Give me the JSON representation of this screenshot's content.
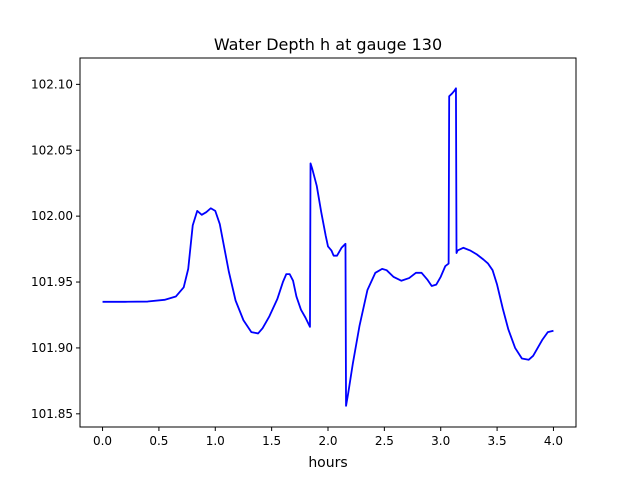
{
  "chart_data": {
    "type": "line",
    "title": "Water Depth h at gauge 130",
    "xlabel": "hours",
    "ylabel": "",
    "xlim": [
      -0.2,
      4.2
    ],
    "ylim": [
      101.84,
      102.12
    ],
    "xticks": [
      0.0,
      0.5,
      1.0,
      1.5,
      2.0,
      2.5,
      3.0,
      3.5,
      4.0
    ],
    "xtick_labels": [
      "0.0",
      "0.5",
      "1.0",
      "1.5",
      "2.0",
      "2.5",
      "3.0",
      "3.5",
      "4.0"
    ],
    "yticks": [
      101.85,
      101.9,
      101.95,
      102.0,
      102.05,
      102.1
    ],
    "ytick_labels": [
      "101.85",
      "101.90",
      "101.95",
      "102.00",
      "102.05",
      "102.10"
    ],
    "grid": false,
    "series": [
      {
        "color": "#0000ff",
        "x": [
          0.0,
          0.2,
          0.4,
          0.55,
          0.65,
          0.72,
          0.76,
          0.8,
          0.84,
          0.88,
          0.92,
          0.96,
          1.0,
          1.04,
          1.08,
          1.12,
          1.18,
          1.25,
          1.32,
          1.38,
          1.42,
          1.48,
          1.55,
          1.6,
          1.63,
          1.66,
          1.69,
          1.72,
          1.76,
          1.8,
          1.84,
          1.845,
          1.86,
          1.9,
          1.94,
          1.98,
          2.0,
          2.03,
          2.05,
          2.08,
          2.12,
          2.155,
          2.16,
          2.18,
          2.22,
          2.28,
          2.35,
          2.42,
          2.48,
          2.52,
          2.58,
          2.65,
          2.72,
          2.78,
          2.83,
          2.88,
          2.92,
          2.96,
          3.0,
          3.04,
          3.07,
          3.075,
          3.1,
          3.12,
          3.135,
          3.14,
          3.15,
          3.2,
          3.26,
          3.32,
          3.38,
          3.42,
          3.46,
          3.5,
          3.55,
          3.6,
          3.66,
          3.72,
          3.78,
          3.82,
          3.86,
          3.9,
          3.95,
          4.0
        ],
        "y": [
          101.935,
          101.935,
          101.9352,
          101.9365,
          101.939,
          101.946,
          101.96,
          101.993,
          102.004,
          102.001,
          102.003,
          102.006,
          102.004,
          101.994,
          101.976,
          101.958,
          101.936,
          101.921,
          101.912,
          101.911,
          101.915,
          101.924,
          101.937,
          101.95,
          101.956,
          101.956,
          101.951,
          101.939,
          101.929,
          101.923,
          101.916,
          102.04,
          102.036,
          102.023,
          102.003,
          101.985,
          101.977,
          101.974,
          101.97,
          101.97,
          101.976,
          101.979,
          101.856,
          101.866,
          101.888,
          101.917,
          101.944,
          101.957,
          101.96,
          101.959,
          101.954,
          101.951,
          101.953,
          101.957,
          101.957,
          101.952,
          101.947,
          101.948,
          101.954,
          101.962,
          101.964,
          102.091,
          102.093,
          102.095,
          102.097,
          101.972,
          101.974,
          101.976,
          101.974,
          101.971,
          101.967,
          101.964,
          101.959,
          101.948,
          101.93,
          101.914,
          101.9,
          101.892,
          101.891,
          101.894,
          101.9,
          101.906,
          101.912,
          101.913
        ]
      }
    ]
  }
}
